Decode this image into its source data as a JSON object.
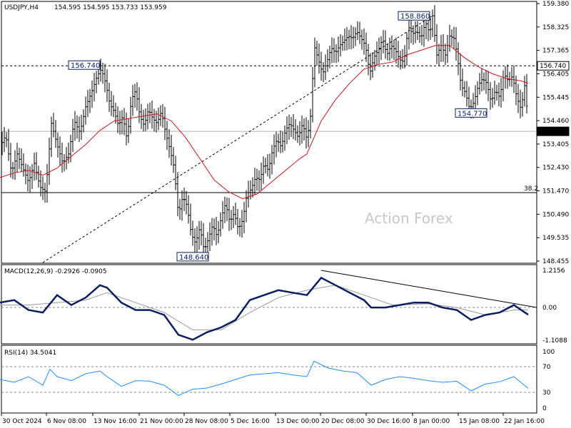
{
  "chart_data": {
    "type": "candlestick",
    "symbol_header": "USDJPY,H4",
    "ohlc_header": "154.595 154.595 153.733 153.959",
    "watermark": "Action Forex",
    "x_tick_labels": [
      "30 Oct 2024",
      "6 Nov 08:00",
      "13 Nov 16:00",
      "21 Nov 00:00",
      "28 Nov 08:00",
      "5 Dec 16:00",
      "13 Dec 00:00",
      "20 Dec 08:00",
      "30 Dec 16:00",
      "8 Jan 00:00",
      "15 Jan 08:00",
      "22 Jan 16:00"
    ],
    "price_panel": {
      "ylim": [
        148.455,
        159.38
      ],
      "y_tick_labels": [
        "159.380",
        "158.325",
        "157.365",
        "156.405",
        "155.445",
        "154.460",
        "153.405",
        "152.430",
        "151.470",
        "150.490",
        "149.535",
        "148.455"
      ],
      "horizontal_levels": [
        {
          "value": 156.74,
          "label": "156.740",
          "style": "dashed"
        },
        {
          "value": 151.36,
          "label": "38.2",
          "style": "solid"
        },
        {
          "value": 153.959,
          "label": "153.959",
          "style": "solid-gray"
        }
      ],
      "annotations": [
        {
          "text": "156.740",
          "value": 156.74
        },
        {
          "text": "158.860",
          "value": 158.86
        },
        {
          "text": "148.640",
          "value": 148.64
        },
        {
          "text": "154.770",
          "value": 154.77
        }
      ],
      "price_path": [
        [
          0,
          153.3
        ],
        [
          8,
          153.8
        ],
        [
          16,
          152.2
        ],
        [
          24,
          153.0
        ],
        [
          32,
          152.4
        ],
        [
          40,
          151.8
        ],
        [
          48,
          152.6
        ],
        [
          56,
          151.6
        ],
        [
          64,
          151.4
        ],
        [
          72,
          154.3
        ],
        [
          80,
          153.4
        ],
        [
          88,
          152.6
        ],
        [
          96,
          153.0
        ],
        [
          104,
          154.4
        ],
        [
          112,
          153.9
        ],
        [
          120,
          155.0
        ],
        [
          128,
          155.6
        ],
        [
          136,
          156.3
        ],
        [
          142,
          156.6
        ],
        [
          148,
          156.0
        ],
        [
          154,
          155.1
        ],
        [
          160,
          154.8
        ],
        [
          166,
          154.2
        ],
        [
          172,
          154.6
        ],
        [
          178,
          153.6
        ],
        [
          184,
          155.3
        ],
        [
          190,
          155.7
        ],
        [
          196,
          154.6
        ],
        [
          202,
          154.2
        ],
        [
          208,
          154.9
        ],
        [
          214,
          154.5
        ],
        [
          220,
          154.3
        ],
        [
          226,
          154.8
        ],
        [
          232,
          153.9
        ],
        [
          238,
          153.2
        ],
        [
          244,
          152.4
        ],
        [
          250,
          150.4
        ],
        [
          256,
          151.2
        ],
        [
          262,
          150.8
        ],
        [
          268,
          149.6
        ],
        [
          274,
          149.2
        ],
        [
          280,
          149.9
        ],
        [
          286,
          148.9
        ],
        [
          292,
          149.4
        ],
        [
          298,
          150.0
        ],
        [
          304,
          149.5
        ],
        [
          310,
          150.3
        ],
        [
          316,
          150.9
        ],
        [
          322,
          150.1
        ],
        [
          328,
          150.5
        ],
        [
          334,
          149.8
        ],
        [
          340,
          150.2
        ],
        [
          346,
          151.3
        ],
        [
          352,
          151.5
        ],
        [
          358,
          152.0
        ],
        [
          364,
          151.9
        ],
        [
          370,
          152.6
        ],
        [
          376,
          152.3
        ],
        [
          382,
          153.2
        ],
        [
          388,
          153.6
        ],
        [
          394,
          153.3
        ],
        [
          400,
          154.0
        ],
        [
          406,
          154.3
        ],
        [
          412,
          154.0
        ],
        [
          418,
          153.7
        ],
        [
          424,
          154.3
        ],
        [
          430,
          153.6
        ],
        [
          436,
          154.8
        ],
        [
          440,
          157.6
        ],
        [
          446,
          157.0
        ],
        [
          452,
          156.4
        ],
        [
          458,
          156.9
        ],
        [
          464,
          157.5
        ],
        [
          470,
          157.3
        ],
        [
          476,
          157.6
        ],
        [
          482,
          157.8
        ],
        [
          488,
          158.0
        ],
        [
          494,
          157.9
        ],
        [
          500,
          158.2
        ],
        [
          506,
          157.9
        ],
        [
          512,
          157.6
        ],
        [
          518,
          156.4
        ],
        [
          524,
          157.1
        ],
        [
          530,
          157.4
        ],
        [
          536,
          157.9
        ],
        [
          542,
          157.2
        ],
        [
          548,
          157.6
        ],
        [
          554,
          157.4
        ],
        [
          560,
          157.0
        ],
        [
          566,
          156.9
        ],
        [
          572,
          158.4
        ],
        [
          578,
          158.1
        ],
        [
          584,
          158.2
        ],
        [
          590,
          157.9
        ],
        [
          596,
          158.6
        ],
        [
          602,
          158.1
        ],
        [
          606,
          158.86
        ],
        [
          612,
          157.2
        ],
        [
          618,
          157.6
        ],
        [
          624,
          157.2
        ],
        [
          630,
          158.0
        ],
        [
          636,
          157.9
        ],
        [
          640,
          157.3
        ],
        [
          646,
          155.9
        ],
        [
          652,
          155.6
        ],
        [
          658,
          154.9
        ],
        [
          664,
          155.2
        ],
        [
          670,
          155.9
        ],
        [
          676,
          156.2
        ],
        [
          682,
          156.0
        ],
        [
          688,
          155.2
        ],
        [
          694,
          155.7
        ],
        [
          700,
          155.4
        ],
        [
          706,
          156.4
        ],
        [
          712,
          156.1
        ],
        [
          718,
          156.3
        ],
        [
          724,
          155.4
        ],
        [
          730,
          154.9
        ],
        [
          736,
          156.1
        ],
        [
          740,
          153.96
        ]
      ],
      "ma_path": [
        [
          0,
          152.0
        ],
        [
          20,
          152.2
        ],
        [
          40,
          152.3
        ],
        [
          60,
          152.1
        ],
        [
          80,
          152.4
        ],
        [
          100,
          152.9
        ],
        [
          120,
          153.4
        ],
        [
          140,
          154.0
        ],
        [
          160,
          154.4
        ],
        [
          180,
          154.5
        ],
        [
          200,
          154.6
        ],
        [
          220,
          154.7
        ],
        [
          240,
          154.4
        ],
        [
          260,
          153.7
        ],
        [
          280,
          152.8
        ],
        [
          300,
          151.9
        ],
        [
          320,
          151.4
        ],
        [
          340,
          151.1
        ],
        [
          360,
          151.3
        ],
        [
          380,
          151.8
        ],
        [
          400,
          152.3
        ],
        [
          420,
          152.8
        ],
        [
          430,
          153.0
        ],
        [
          450,
          154.4
        ],
        [
          470,
          155.3
        ],
        [
          490,
          156.0
        ],
        [
          510,
          156.6
        ],
        [
          530,
          156.8
        ],
        [
          550,
          156.9
        ],
        [
          570,
          157.2
        ],
        [
          590,
          157.4
        ],
        [
          610,
          157.6
        ],
        [
          630,
          157.6
        ],
        [
          650,
          157.1
        ],
        [
          670,
          156.7
        ],
        [
          690,
          156.4
        ],
        [
          710,
          156.2
        ],
        [
          730,
          156.1
        ],
        [
          740,
          156.0
        ]
      ]
    },
    "macd_panel": {
      "title": "MACD(12,26,9) -0.2926 -0.0905",
      "y_tick_labels": [
        "1.2156",
        "0.00",
        "-1.1088"
      ],
      "ylim": [
        -1.35,
        1.5
      ],
      "macd_path": [
        [
          0,
          0.2
        ],
        [
          20,
          0.3
        ],
        [
          40,
          -0.1
        ],
        [
          60,
          -0.2
        ],
        [
          80,
          0.5
        ],
        [
          100,
          0.1
        ],
        [
          120,
          0.4
        ],
        [
          140,
          0.9
        ],
        [
          150,
          0.8
        ],
        [
          170,
          0.2
        ],
        [
          190,
          -0.1
        ],
        [
          210,
          -0.1
        ],
        [
          230,
          -0.3
        ],
        [
          250,
          -1.1
        ],
        [
          270,
          -1.3
        ],
        [
          290,
          -1.0
        ],
        [
          310,
          -0.8
        ],
        [
          330,
          -0.5
        ],
        [
          350,
          0.3
        ],
        [
          370,
          0.5
        ],
        [
          390,
          0.7
        ],
        [
          410,
          0.6
        ],
        [
          430,
          0.5
        ],
        [
          450,
          1.2
        ],
        [
          470,
          0.9
        ],
        [
          490,
          0.6
        ],
        [
          510,
          0.3
        ],
        [
          520,
          0.0
        ],
        [
          540,
          0.0
        ],
        [
          560,
          0.1
        ],
        [
          580,
          0.2
        ],
        [
          600,
          0.2
        ],
        [
          620,
          0.0
        ],
        [
          640,
          -0.1
        ],
        [
          660,
          -0.5
        ],
        [
          680,
          -0.3
        ],
        [
          700,
          -0.2
        ],
        [
          720,
          0.1
        ],
        [
          740,
          -0.29
        ]
      ],
      "signal_path": [
        [
          0,
          0.1
        ],
        [
          40,
          0.1
        ],
        [
          80,
          0.2
        ],
        [
          120,
          0.3
        ],
        [
          150,
          0.6
        ],
        [
          190,
          0.2
        ],
        [
          230,
          -0.2
        ],
        [
          270,
          -0.9
        ],
        [
          310,
          -0.9
        ],
        [
          350,
          -0.2
        ],
        [
          390,
          0.4
        ],
        [
          430,
          0.7
        ],
        [
          470,
          0.9
        ],
        [
          510,
          0.5
        ],
        [
          550,
          0.1
        ],
        [
          600,
          0.15
        ],
        [
          640,
          0.0
        ],
        [
          680,
          -0.3
        ],
        [
          720,
          -0.1
        ],
        [
          740,
          -0.09
        ]
      ]
    },
    "rsi_panel": {
      "title": "RSI(14) 34.5041",
      "y_tick_labels": [
        "100",
        "70",
        "30",
        "0"
      ],
      "ylim": [
        0,
        100
      ],
      "levels": [
        70,
        30
      ],
      "rsi_path": [
        [
          0,
          50
        ],
        [
          20,
          45
        ],
        [
          40,
          55
        ],
        [
          60,
          40
        ],
        [
          70,
          68
        ],
        [
          80,
          55
        ],
        [
          100,
          48
        ],
        [
          120,
          60
        ],
        [
          140,
          65
        ],
        [
          150,
          55
        ],
        [
          170,
          38
        ],
        [
          190,
          48
        ],
        [
          210,
          47
        ],
        [
          230,
          40
        ],
        [
          250,
          22
        ],
        [
          270,
          33
        ],
        [
          290,
          35
        ],
        [
          310,
          42
        ],
        [
          330,
          50
        ],
        [
          350,
          58
        ],
        [
          370,
          60
        ],
        [
          390,
          62
        ],
        [
          410,
          58
        ],
        [
          430,
          55
        ],
        [
          440,
          82
        ],
        [
          460,
          70
        ],
        [
          480,
          65
        ],
        [
          500,
          62
        ],
        [
          520,
          40
        ],
        [
          540,
          50
        ],
        [
          560,
          55
        ],
        [
          580,
          52
        ],
        [
          600,
          48
        ],
        [
          620,
          45
        ],
        [
          640,
          47
        ],
        [
          660,
          30
        ],
        [
          680,
          42
        ],
        [
          700,
          46
        ],
        [
          720,
          55
        ],
        [
          740,
          34.5
        ]
      ]
    }
  }
}
